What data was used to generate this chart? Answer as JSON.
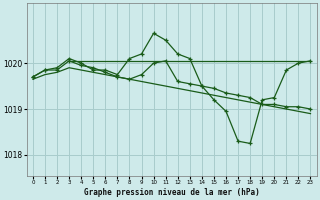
{
  "title": "Graphe pression niveau de la mer (hPa)",
  "background_color": "#ceeaea",
  "grid_color": "#a8cccc",
  "line_color": "#1a5c1a",
  "xlim": [
    -0.5,
    23.5
  ],
  "ylim": [
    1017.55,
    1021.3
  ],
  "yticks": [
    1018,
    1019,
    1020
  ],
  "xticks": [
    0,
    1,
    2,
    3,
    4,
    5,
    6,
    7,
    8,
    9,
    10,
    11,
    12,
    13,
    14,
    15,
    16,
    17,
    18,
    19,
    20,
    21,
    22,
    23
  ],
  "series_flat_x": [
    3,
    4,
    5,
    6,
    7,
    8,
    9,
    10,
    11,
    12,
    13,
    14,
    15,
    16,
    17,
    18,
    19,
    20,
    21,
    22,
    23
  ],
  "series_flat_y": [
    1020.05,
    1020.05,
    1020.05,
    1020.05,
    1020.05,
    1020.05,
    1020.05,
    1020.05,
    1020.05,
    1020.05,
    1020.05,
    1020.05,
    1020.05,
    1020.05,
    1020.05,
    1020.05,
    1020.05,
    1020.05,
    1020.05,
    1020.05,
    1020.05
  ],
  "series_peak_x": [
    0,
    1,
    2,
    3,
    4,
    5,
    6,
    7,
    8,
    9,
    10,
    11,
    12,
    13,
    14,
    15,
    16,
    17,
    18,
    19,
    20,
    21,
    22,
    23
  ],
  "series_peak_y": [
    1019.7,
    1019.85,
    1019.9,
    1020.1,
    1020.0,
    1019.85,
    1019.85,
    1019.75,
    1020.1,
    1020.2,
    1020.65,
    1020.5,
    1020.2,
    1020.1,
    1019.5,
    1019.2,
    1018.95,
    1018.3,
    1018.25,
    1019.2,
    1019.25,
    1019.85,
    1020.0,
    1020.05
  ],
  "series_mid_x": [
    0,
    1,
    2,
    3,
    4,
    5,
    6,
    7,
    8,
    9,
    10,
    11,
    12,
    13,
    14,
    15,
    16,
    17,
    18,
    19,
    20,
    21,
    22,
    23
  ],
  "series_mid_y": [
    1019.7,
    1019.85,
    1019.85,
    1020.05,
    1019.95,
    1019.9,
    1019.8,
    1019.7,
    1019.65,
    1019.75,
    1020.0,
    1020.05,
    1019.6,
    1019.55,
    1019.5,
    1019.45,
    1019.35,
    1019.3,
    1019.25,
    1019.1,
    1019.1,
    1019.05,
    1019.05,
    1019.0
  ],
  "series_low_x": [
    0,
    1,
    2,
    3,
    4,
    5,
    6,
    7,
    8,
    9,
    10,
    11,
    12,
    13,
    14,
    15,
    16,
    17,
    18,
    19,
    20,
    21,
    22,
    23
  ],
  "series_low_y": [
    1019.65,
    1019.75,
    1019.8,
    1019.9,
    1019.85,
    1019.8,
    1019.75,
    1019.7,
    1019.65,
    1019.6,
    1019.55,
    1019.5,
    1019.45,
    1019.4,
    1019.35,
    1019.3,
    1019.25,
    1019.2,
    1019.15,
    1019.1,
    1019.05,
    1019.0,
    1018.95,
    1018.9
  ]
}
